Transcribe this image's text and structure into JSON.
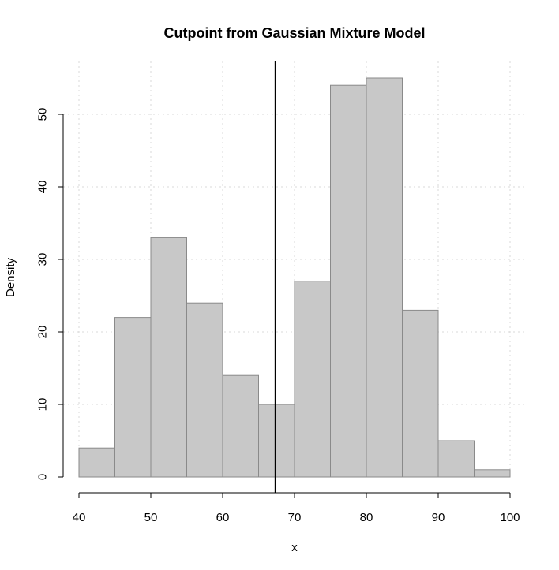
{
  "chart_data": {
    "type": "bar",
    "title": "Cutpoint from Gaussian Mixture Model",
    "xlabel": "x",
    "ylabel": "Density",
    "xlim": [
      40,
      100
    ],
    "ylim": [
      0,
      57
    ],
    "x_ticks": [
      40,
      50,
      60,
      70,
      80,
      90,
      100
    ],
    "y_ticks": [
      0,
      10,
      20,
      30,
      40,
      50
    ],
    "bins": [
      {
        "start": 40,
        "end": 45,
        "value": 4
      },
      {
        "start": 45,
        "end": 50,
        "value": 22
      },
      {
        "start": 50,
        "end": 55,
        "value": 33
      },
      {
        "start": 55,
        "end": 60,
        "value": 24
      },
      {
        "start": 60,
        "end": 65,
        "value": 14
      },
      {
        "start": 65,
        "end": 70,
        "value": 10
      },
      {
        "start": 70,
        "end": 75,
        "value": 27
      },
      {
        "start": 75,
        "end": 80,
        "value": 54
      },
      {
        "start": 80,
        "end": 85,
        "value": 55
      },
      {
        "start": 85,
        "end": 90,
        "value": 23
      },
      {
        "start": 90,
        "end": 95,
        "value": 5
      },
      {
        "start": 95,
        "end": 100,
        "value": 1
      }
    ],
    "cutpoint": 67.3,
    "grid": true,
    "colors": {
      "bar_fill": "#c8c8c8",
      "bar_stroke": "#8a8a8a",
      "cutpoint_line": "#000000"
    }
  }
}
